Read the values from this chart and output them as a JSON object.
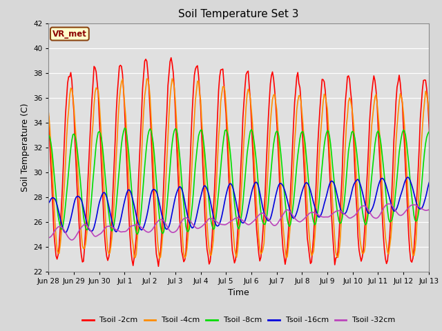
{
  "title": "Soil Temperature Set 3",
  "xlabel": "Time",
  "ylabel": "Soil Temperature (C)",
  "ylim": [
    22,
    42
  ],
  "yticks": [
    22,
    24,
    26,
    28,
    30,
    32,
    34,
    36,
    38,
    40,
    42
  ],
  "bg_color": "#d8d8d8",
  "plot_bg_color": "#e0e0e0",
  "annotation_text": "VR_met",
  "annotation_bg": "#ffffcc",
  "annotation_border": "#8B4513",
  "annotation_text_color": "#8B0000",
  "lines": [
    {
      "label": "Tsoil -2cm",
      "color": "#ff0000",
      "lw": 1.2
    },
    {
      "label": "Tsoil -4cm",
      "color": "#ff8c00",
      "lw": 1.2
    },
    {
      "label": "Tsoil -8cm",
      "color": "#00dd00",
      "lw": 1.2
    },
    {
      "label": "Tsoil -16cm",
      "color": "#0000dd",
      "lw": 1.2
    },
    {
      "label": "Tsoil -32cm",
      "color": "#bb44bb",
      "lw": 1.2
    }
  ],
  "tick_labels": [
    "Jun 28",
    "Jun 29",
    "Jun 30",
    "Jul 1",
    "Jul 2",
    "Jul 3",
    "Jul 4",
    "Jul 5",
    "Jul 6",
    "Jul 7",
    "Jul 8",
    "Jul 9",
    "Jul 10",
    "Jul 11",
    "Jul 12",
    "Jul 13"
  ]
}
